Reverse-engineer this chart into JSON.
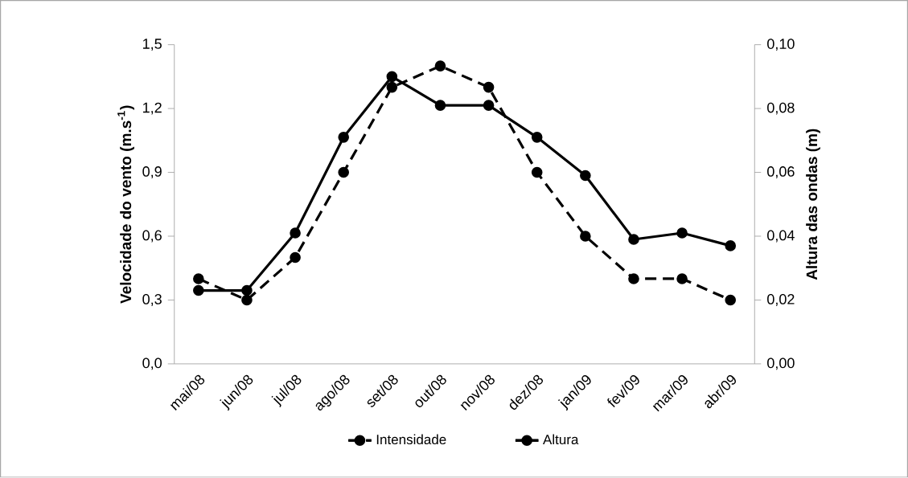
{
  "chart_data": {
    "type": "line",
    "categories": [
      "mai/08",
      "jun/08",
      "jul/08",
      "ago/08",
      "set/08",
      "out/08",
      "nov/08",
      "dez/08",
      "jan/09",
      "fev/09",
      "mar/09",
      "abr/09"
    ],
    "series": [
      {
        "name": "Intensidade",
        "color": "#000000",
        "line_style": "dashed",
        "values": [
          0.4,
          0.3,
          0.5,
          0.9,
          1.3,
          1.4,
          1.3,
          0.9,
          0.6,
          0.4,
          0.4,
          0.3
        ]
      },
      {
        "name": "Altura",
        "color": "#000000",
        "line_style": "solid",
        "axis": "y2",
        "values": [
          0.023,
          0.023,
          0.041,
          0.071,
          0.09,
          0.081,
          0.081,
          0.071,
          0.059,
          0.039,
          0.041,
          0.037
        ]
      }
    ],
    "ylabel": "Velocidade do vento (m.s$^{-1}$)",
    "y2label": "Altura das ondas (m)",
    "ylim": [
      0,
      1.5
    ],
    "yticks": [
      {
        "value": 0,
        "label": "0,0"
      },
      {
        "value": 0.3,
        "label": "0,3"
      },
      {
        "value": 0.6,
        "label": "0,6"
      },
      {
        "value": 0.9,
        "label": "0,9"
      },
      {
        "value": 1.2,
        "label": "1,2"
      },
      {
        "value": 1.5,
        "label": "1,5"
      }
    ],
    "y2lim": [
      0,
      0.1
    ],
    "y2ticks": [
      {
        "value": 0,
        "label": "0,00"
      },
      {
        "value": 0.02,
        "label": "0,02"
      },
      {
        "value": 0.04,
        "label": "0,04"
      },
      {
        "value": 0.06,
        "label": "0,06"
      },
      {
        "value": 0.08,
        "label": "0,08"
      },
      {
        "value": 0.1,
        "label": "0,10"
      }
    ],
    "marker": "circle",
    "legend": "bottom",
    "grid": false
  }
}
